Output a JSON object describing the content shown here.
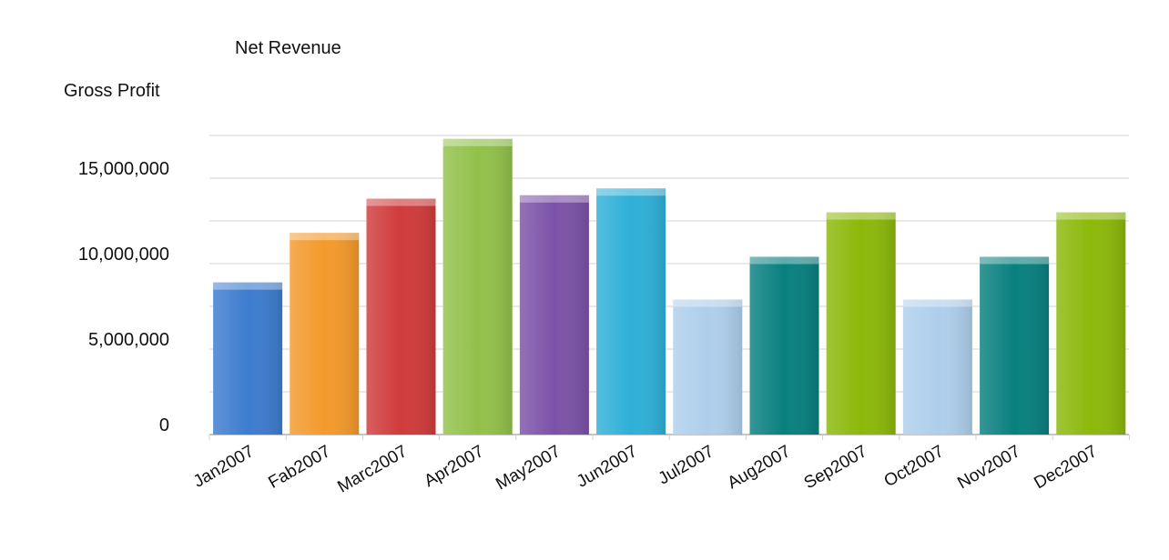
{
  "chart_data": {
    "type": "bar",
    "title": "",
    "xlabel": "",
    "ylabel": "",
    "legend_entries": [
      "Net Revenue",
      "Gross Profit"
    ],
    "categories": [
      "Jan2007",
      "Fab2007",
      "Marc2007",
      "Apr2007",
      "May2007",
      "Jun2007",
      "Jul2007",
      "Aug2007",
      "Sep2007",
      "Oct2007",
      "Nov2007",
      "Dec2007"
    ],
    "values": [
      8900000,
      11800000,
      13800000,
      17300000,
      14000000,
      14400000,
      7900000,
      10400000,
      13000000,
      7900000,
      10400000,
      13000000
    ],
    "bar_colors": [
      "#3d7ccf",
      "#f39a2b",
      "#d03b3b",
      "#92c14a",
      "#7b52a8",
      "#2fb0d8",
      "#aecfec",
      "#08807f",
      "#8cb80a",
      "#aecfec",
      "#08807f",
      "#8cb80a"
    ],
    "ylim": [
      0,
      18000000
    ],
    "yticks": [
      0,
      5000000,
      10000000,
      15000000
    ],
    "ytick_labels": [
      "0",
      "5,000,000",
      "10,000,000",
      "15,000,000"
    ],
    "grid": true
  }
}
